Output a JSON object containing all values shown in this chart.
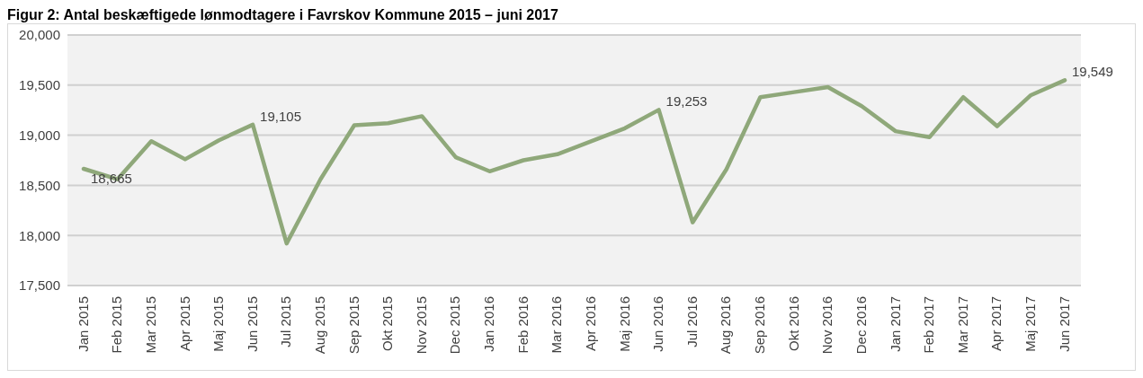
{
  "chart_data": {
    "type": "line",
    "title": "Figur 2: Antal beskæftigede lønmodtagere i Favrskov Kommune 2015 – juni 2017",
    "categories": [
      "Jan 2015",
      "Feb 2015",
      "Mar 2015",
      "Apr 2015",
      "Maj 2015",
      "Jun 2015",
      "Jul 2015",
      "Aug 2015",
      "Sep 2015",
      "Okt 2015",
      "Nov 2015",
      "Dec 2015",
      "Jan 2016",
      "Feb 2016",
      "Mar 2016",
      "Apr 2016",
      "Maj 2016",
      "Jun 2016",
      "Jul 2016",
      "Aug 2016",
      "Sep 2016",
      "Okt 2016",
      "Nov 2016",
      "Dec 2016",
      "Jan 2017",
      "Feb 2017",
      "Mar 2017",
      "Apr 2017",
      "Maj 2017",
      "Jun 2017"
    ],
    "series": [
      {
        "color": "#8fa87a",
        "values": [
          18665,
          18560,
          18940,
          18760,
          18950,
          19105,
          17920,
          18560,
          19100,
          19120,
          19190,
          18780,
          18640,
          18750,
          18810,
          18940,
          19070,
          19253,
          18130,
          18660,
          19380,
          19430,
          19480,
          19290,
          19040,
          18980,
          19380,
          19090,
          19400,
          19549
        ],
        "value_labels": [
          "18,665",
          null,
          null,
          null,
          null,
          "19,105",
          null,
          null,
          null,
          null,
          null,
          null,
          null,
          null,
          null,
          null,
          null,
          "19,253",
          null,
          null,
          null,
          null,
          null,
          null,
          null,
          null,
          null,
          null,
          null,
          "19,549"
        ]
      }
    ],
    "ylim": [
      17500,
      20000
    ],
    "yticks": [
      {
        "value": 17500,
        "label": "17,500"
      },
      {
        "value": 18000,
        "label": "18,000"
      },
      {
        "value": 18500,
        "label": "18,500"
      },
      {
        "value": 19000,
        "label": "19,000"
      },
      {
        "value": 19500,
        "label": "19,500"
      },
      {
        "value": 20000,
        "label": "20,000"
      }
    ],
    "grid": "y",
    "marker": "none",
    "line_style": "solid"
  }
}
